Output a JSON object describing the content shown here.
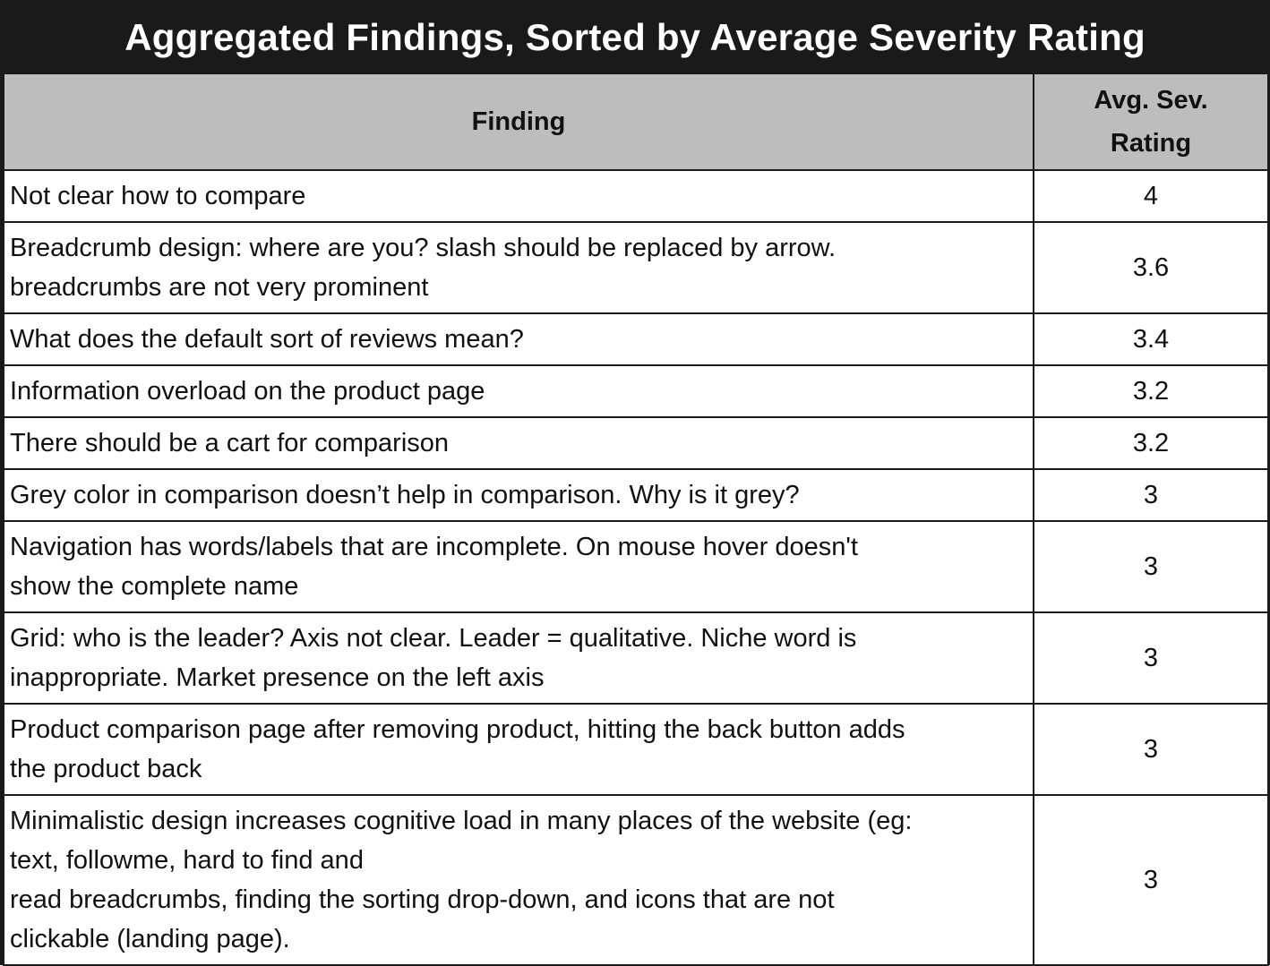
{
  "title": "Aggregated Findings, Sorted by Average Severity Rating",
  "columns": {
    "finding": "Finding",
    "rating": "Avg. Sev. Rating"
  },
  "rows": [
    {
      "lines": [
        "Not clear how to compare"
      ],
      "rating": "4"
    },
    {
      "lines": [
        "Breadcrumb design: where are you? slash should be replaced by arrow.",
        "breadcrumbs are not very prominent"
      ],
      "rating": "3.6"
    },
    {
      "lines": [
        "What does the default sort of reviews mean?"
      ],
      "rating": "3.4"
    },
    {
      "lines": [
        "Information overload on the product page"
      ],
      "rating": "3.2"
    },
    {
      "lines": [
        "There should be a cart for comparison"
      ],
      "rating": "3.2"
    },
    {
      "lines": [
        "Grey color in comparison doesn’t help in comparison. Why is it grey?"
      ],
      "rating": "3"
    },
    {
      "lines": [
        "Navigation has words/labels that are incomplete. On mouse hover doesn't",
        "show the complete name"
      ],
      "rating": "3"
    },
    {
      "lines": [
        "Grid: who is the leader? Axis not clear. Leader = qualitative. Niche word is",
        "inappropriate. Market presence on the left axis"
      ],
      "rating": "3"
    },
    {
      "lines": [
        "Product comparison page after removing product, hitting the back button adds",
        "the product back"
      ],
      "rating": "3"
    },
    {
      "lines": [
        "Minimalistic design increases cognitive load in many places of the website (eg:",
        "text, followme, hard to find and",
        "read breadcrumbs, finding the sorting drop-down, and icons that are not",
        "clickable (landing page)."
      ],
      "rating": "3"
    }
  ]
}
